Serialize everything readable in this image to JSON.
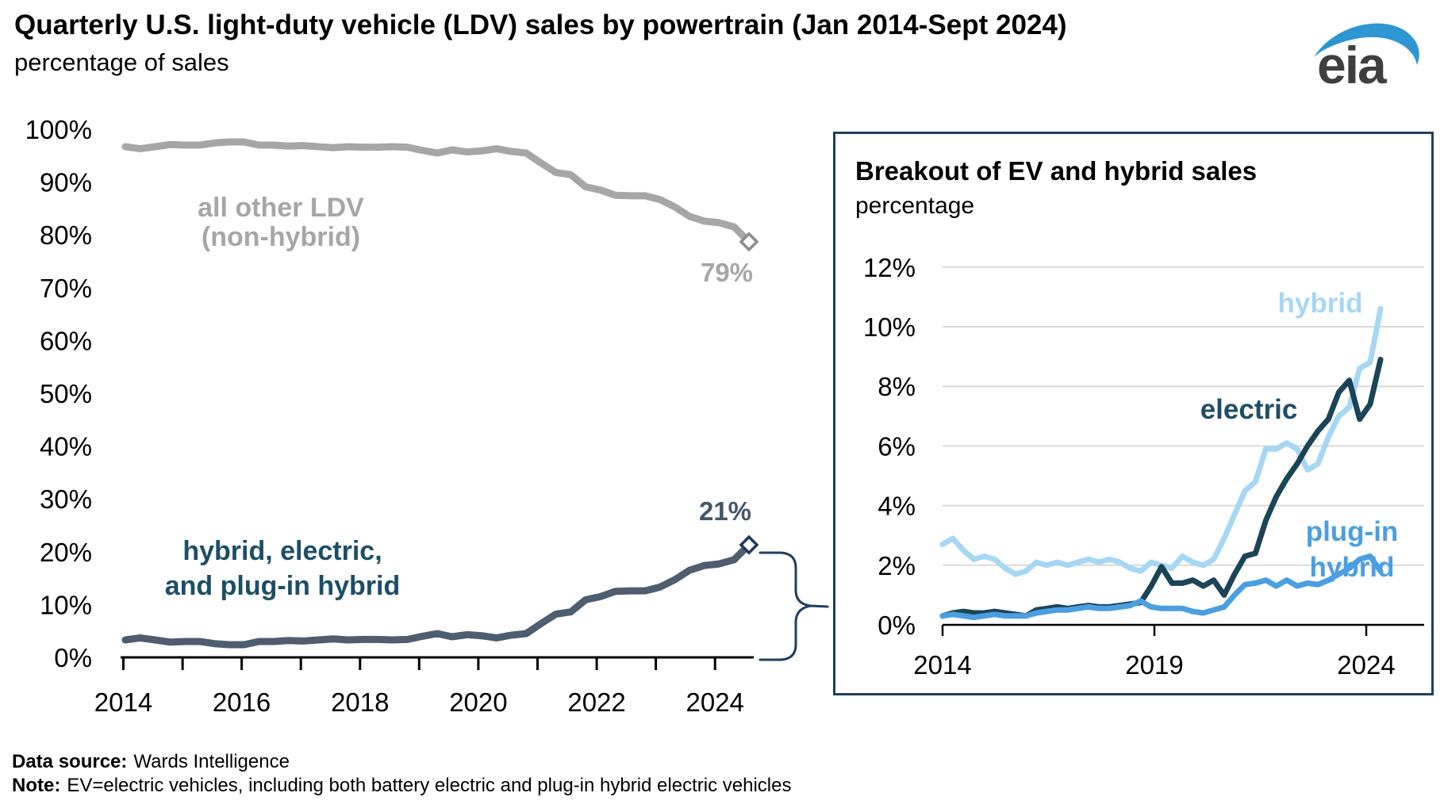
{
  "header": {
    "title": "Quarterly U.S. light-duty vehicle (LDV) sales by powertrain (Jan 2014-Sept 2024)",
    "subtitle": "percentage of sales",
    "logo_text": "eia"
  },
  "footer": {
    "source_label": "Data source:",
    "source_value": "Wards Intelligence",
    "note_label": "Note:",
    "note_value": "EV=electric vehicles, including both battery electric and plug-in hybrid electric vehicles"
  },
  "colors": {
    "gray_series": "#a6a6a6",
    "combined_series": "#4e5d70",
    "combined_label": "#1d4e66",
    "end21_label": "#44566b",
    "electric": "#1c4458",
    "hybrid": "#a6d7f4",
    "plugin_hybrid": "#4b9fe0",
    "inset_border": "#1f3f5f",
    "gridline": "#d9d9d9",
    "logo_blue": "#2e96d3"
  },
  "chart_data": [
    {
      "id": "main",
      "type": "line",
      "title": "Quarterly U.S. light-duty vehicle (LDV) sales by powertrain (Jan 2014-Sept 2024)",
      "ylabel": "percentage of sales",
      "x_start": 2014.0,
      "x_step": 0.25,
      "x_end": 2024.5,
      "ylim": [
        0,
        100
      ],
      "grid": false,
      "ytick_labels": [
        "0%",
        "10%",
        "20%",
        "30%",
        "40%",
        "50%",
        "60%",
        "70%",
        "80%",
        "90%",
        "100%"
      ],
      "xtick_years": [
        2014,
        2015,
        2016,
        2017,
        2018,
        2019,
        2020,
        2021,
        2022,
        2023,
        2024
      ],
      "xtick_labels": [
        "2014",
        "2016",
        "2018",
        "2020",
        "2022",
        "2024"
      ],
      "series": [
        {
          "name": "all other LDV (non-hybrid)",
          "color": "#a6a6a6",
          "values": [
            96.7,
            96.3,
            96.7,
            97.1,
            97.0,
            97.0,
            97.4,
            97.6,
            97.6,
            97.0,
            97.0,
            96.8,
            96.9,
            96.7,
            96.5,
            96.7,
            96.6,
            96.6,
            96.7,
            96.6,
            96.0,
            95.5,
            96.1,
            95.7,
            95.9,
            96.3,
            95.8,
            95.5,
            93.6,
            91.8,
            91.4,
            89.1,
            88.5,
            87.5,
            87.4,
            87.4,
            86.7,
            85.3,
            83.5,
            82.6,
            82.3,
            81.5,
            78.7
          ]
        },
        {
          "name": "hybrid, electric, and plug-in hybrid",
          "color": "#4e5d70",
          "values": [
            3.3,
            3.7,
            3.3,
            2.9,
            3.0,
            3.0,
            2.6,
            2.4,
            2.4,
            3.0,
            3.0,
            3.2,
            3.1,
            3.3,
            3.5,
            3.3,
            3.4,
            3.4,
            3.3,
            3.4,
            4.0,
            4.5,
            3.9,
            4.3,
            4.1,
            3.7,
            4.2,
            4.5,
            6.4,
            8.2,
            8.6,
            10.9,
            11.5,
            12.5,
            12.6,
            12.6,
            13.3,
            14.7,
            16.5,
            17.4,
            17.7,
            18.5,
            21.3
          ]
        }
      ],
      "end_labels": [
        {
          "series": "all other LDV (non-hybrid)",
          "text": "79%"
        },
        {
          "series": "hybrid, electric, and plug-in hybrid",
          "text": "21%"
        }
      ],
      "annotations": {
        "all_other_line1": "all other LDV",
        "all_other_line2": "(non-hybrid)",
        "combined_line1": "hybrid, electric,",
        "combined_line2": "and plug-in hybrid"
      }
    },
    {
      "id": "inset",
      "type": "line",
      "title": "Breakout of EV and hybrid sales",
      "subtitle": "percentage",
      "x_start": 2014.0,
      "x_step": 0.25,
      "x_end": 2024.5,
      "ylim": [
        0,
        12
      ],
      "grid": true,
      "ytick_labels": [
        "0%",
        "2%",
        "4%",
        "6%",
        "8%",
        "10%",
        "12%"
      ],
      "xtick_years": [
        2014,
        2019,
        2024
      ],
      "xtick_labels": [
        "2014",
        "2019",
        "2024"
      ],
      "series": [
        {
          "name": "hybrid",
          "color": "#a6d7f4",
          "values": [
            2.7,
            2.9,
            2.5,
            2.2,
            2.3,
            2.2,
            1.9,
            1.7,
            1.8,
            2.1,
            2.0,
            2.1,
            2.0,
            2.1,
            2.2,
            2.1,
            2.2,
            2.1,
            1.9,
            1.8,
            2.1,
            2.0,
            1.9,
            2.3,
            2.1,
            2.0,
            2.2,
            2.9,
            3.7,
            4.5,
            4.8,
            5.9,
            5.9,
            6.1,
            5.9,
            5.2,
            5.4,
            6.3,
            7.0,
            7.3,
            8.6,
            8.8,
            10.6
          ]
        },
        {
          "name": "electric",
          "color": "#1c4458",
          "values": [
            0.3,
            0.4,
            0.45,
            0.4,
            0.4,
            0.45,
            0.4,
            0.35,
            0.3,
            0.5,
            0.55,
            0.6,
            0.55,
            0.6,
            0.65,
            0.6,
            0.6,
            0.65,
            0.7,
            0.75,
            1.3,
            1.95,
            1.4,
            1.4,
            1.5,
            1.3,
            1.5,
            1.0,
            1.7,
            2.3,
            2.4,
            3.5,
            4.3,
            4.9,
            5.4,
            6.0,
            6.5,
            6.9,
            7.8,
            8.2,
            6.9,
            7.4,
            8.9
          ]
        },
        {
          "name": "plug-in hybrid",
          "color": "#4b9fe0",
          "values": [
            0.3,
            0.35,
            0.3,
            0.25,
            0.3,
            0.35,
            0.3,
            0.3,
            0.3,
            0.4,
            0.45,
            0.5,
            0.5,
            0.55,
            0.6,
            0.55,
            0.55,
            0.6,
            0.65,
            0.8,
            0.6,
            0.55,
            0.55,
            0.55,
            0.45,
            0.4,
            0.5,
            0.6,
            1.0,
            1.35,
            1.4,
            1.5,
            1.3,
            1.5,
            1.3,
            1.4,
            1.35,
            1.5,
            1.7,
            1.9,
            2.2,
            2.3,
            1.8
          ]
        }
      ],
      "series_labels": {
        "hybrid": "hybrid",
        "electric": "electric",
        "plugin_line1": "plug-in",
        "plugin_line2": "hybrid"
      }
    }
  ]
}
